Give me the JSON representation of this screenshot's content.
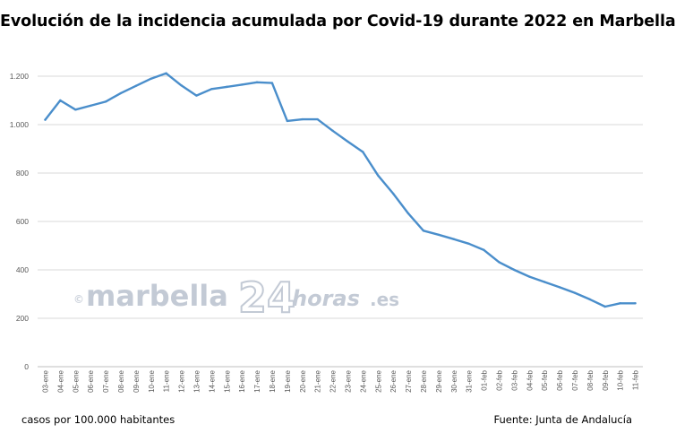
{
  "page": {
    "title": "Evolución de la incidencia acumulada por Covid-19 durante 2022 en Marbella",
    "footer_left": "casos por 100.000 habitantes",
    "footer_right": "Fuente: Junta de Andalucía"
  },
  "watermark": {
    "copyright": "©",
    "main": "marbella",
    "number": "24",
    "suffix": "horas",
    "tld": ".es"
  },
  "colors": {
    "line": "#4a8ecb",
    "grid": "#d9d9d9",
    "axis_text": "#595959"
  },
  "chart_data": {
    "type": "line",
    "title": "Evolución de la incidencia acumulada por Covid-19 durante 2022 en Marbella",
    "xlabel": "",
    "ylabel": "",
    "ylim": [
      0,
      1300
    ],
    "yticks": [
      0,
      200,
      400,
      600,
      800,
      1000,
      1200
    ],
    "ytick_labels": [
      "0",
      "200",
      "400",
      "600",
      "800",
      "1.000",
      "1.200"
    ],
    "grid": true,
    "categories": [
      "03-ene",
      "04-ene",
      "05-ene",
      "06-ene",
      "07-ene",
      "08-ene",
      "09-ene",
      "10-ene",
      "11-ene",
      "12-ene",
      "13-ene",
      "14-ene",
      "15-ene",
      "16-ene",
      "17-ene",
      "18-ene",
      "19-ene",
      "20-ene",
      "21-ene",
      "22-ene",
      "23-ene",
      "24-ene",
      "25-ene",
      "26-ene",
      "27-ene",
      "28-ene",
      "29-ene",
      "30-ene",
      "31-ene",
      "01-feb",
      "02-feb",
      "03-feb",
      "04-feb",
      "05-feb",
      "06-feb",
      "07-feb",
      "08-feb",
      "09-feb",
      "10-feb",
      "11-feb"
    ],
    "series": [
      {
        "values": [
          1020,
          1100,
          1062,
          1078,
          1095,
          1130,
          1160,
          1190,
          1212,
          1162,
          1120,
          1147,
          1156,
          1165,
          1175,
          1172,
          1015,
          1022,
          1022,
          975,
          930,
          887,
          790,
          715,
          633,
          562,
          545,
          527,
          508,
          482,
          432,
          400,
          372,
          350,
          328,
          305,
          278,
          248,
          262,
          262
        ]
      }
    ]
  }
}
